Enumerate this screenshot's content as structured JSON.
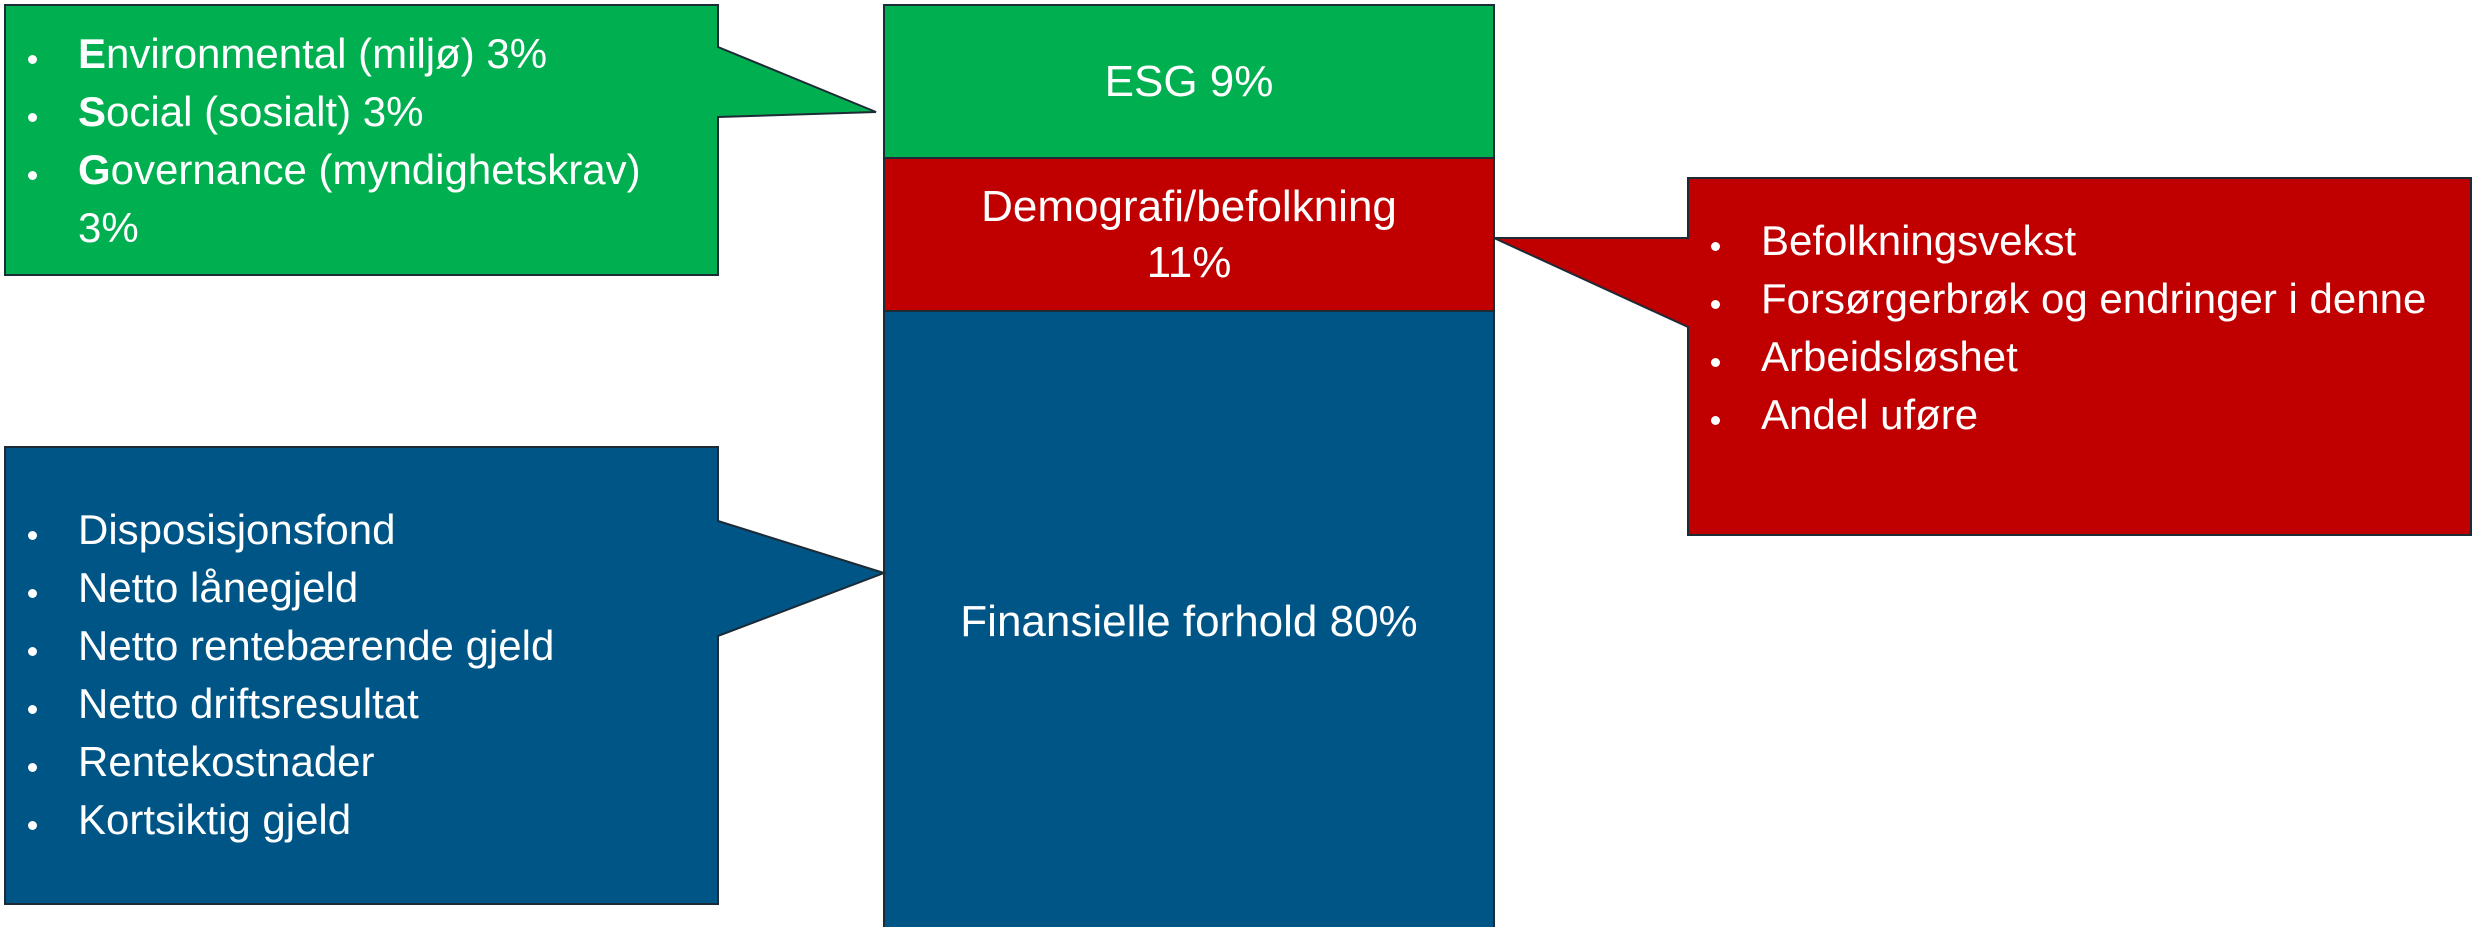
{
  "column": {
    "segments": [
      {
        "label": "ESG 9%"
      },
      {
        "label": "Demografi/befolkning 11%"
      },
      {
        "label": "Finansielle forhold 80%"
      }
    ]
  },
  "callouts": {
    "esg": {
      "items": [
        "Environmental (miljø) 3%",
        "Social (sosialt) 3%",
        "Governance (myndighetskrav) 3%"
      ]
    },
    "demografi": {
      "items": [
        "Befolkningsvekst",
        "Forsørgerbrøk og endringer i denne",
        "Arbeidsløshet",
        "Andel uføre"
      ]
    },
    "finans": {
      "items": [
        "Disposisjonsfond",
        "Netto lånegjeld",
        "Netto rentebærende gjeld",
        "Netto driftsresultat",
        "Rentekostnader",
        "Kortsiktig gjeld"
      ]
    }
  }
}
